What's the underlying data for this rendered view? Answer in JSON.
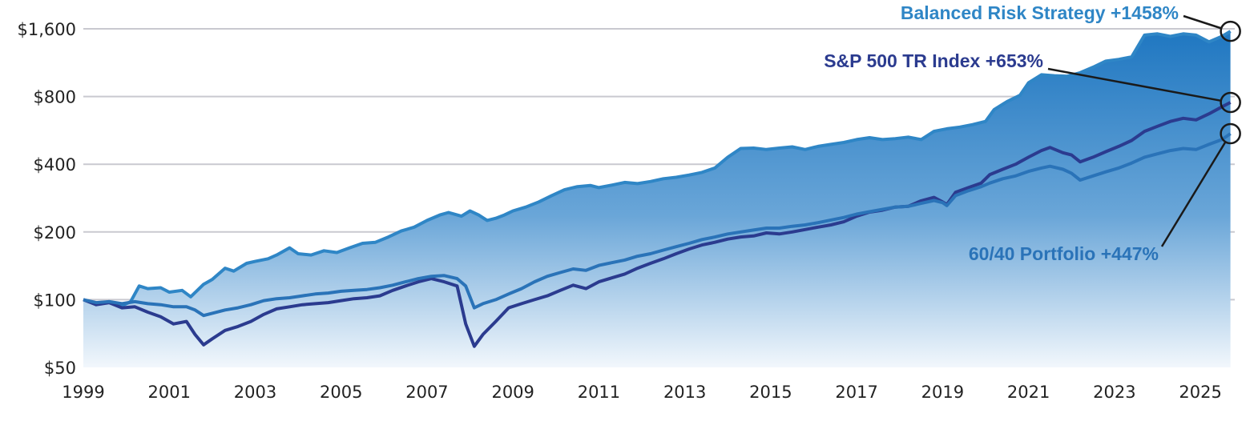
{
  "chart_data": {
    "type": "line",
    "y_scale": "log",
    "ylim": [
      50,
      1800
    ],
    "xlim": [
      1999,
      2025.8
    ],
    "y_ticks": [
      {
        "value": 1600,
        "label": "$1,600"
      },
      {
        "value": 800,
        "label": "$800"
      },
      {
        "value": 400,
        "label": "$400"
      },
      {
        "value": 200,
        "label": "$200"
      },
      {
        "value": 100,
        "label": "$100"
      },
      {
        "value": 50,
        "label": "$50"
      }
    ],
    "x_ticks": [
      {
        "value": 1999,
        "label": "1999"
      },
      {
        "value": 2001,
        "label": "2001"
      },
      {
        "value": 2003,
        "label": "2003"
      },
      {
        "value": 2005,
        "label": "2005"
      },
      {
        "value": 2007,
        "label": "2007"
      },
      {
        "value": 2009,
        "label": "2009"
      },
      {
        "value": 2011,
        "label": "2011"
      },
      {
        "value": 2013,
        "label": "2013"
      },
      {
        "value": 2015,
        "label": "2015"
      },
      {
        "value": 2017,
        "label": "2017"
      },
      {
        "value": 2019,
        "label": "2019"
      },
      {
        "value": 2021,
        "label": "2021"
      },
      {
        "value": 2023,
        "label": "2023"
      },
      {
        "value": 2025,
        "label": "2025"
      }
    ],
    "grid": true,
    "series": [
      {
        "name": "Balanced Risk Strategy +1458%",
        "style": "area",
        "color": "#2f86c6",
        "points": [
          [
            1999.0,
            100
          ],
          [
            1999.3,
            96
          ],
          [
            1999.6,
            98
          ],
          [
            1999.9,
            94
          ],
          [
            2000.1,
            98
          ],
          [
            2000.3,
            115
          ],
          [
            2000.5,
            112
          ],
          [
            2000.8,
            113
          ],
          [
            2001.0,
            108
          ],
          [
            2001.3,
            110
          ],
          [
            2001.5,
            103
          ],
          [
            2001.8,
            117
          ],
          [
            2002.0,
            123
          ],
          [
            2002.3,
            138
          ],
          [
            2002.5,
            134
          ],
          [
            2002.8,
            145
          ],
          [
            2003.0,
            148
          ],
          [
            2003.3,
            152
          ],
          [
            2003.5,
            158
          ],
          [
            2003.8,
            170
          ],
          [
            2004.0,
            160
          ],
          [
            2004.3,
            158
          ],
          [
            2004.6,
            165
          ],
          [
            2004.9,
            162
          ],
          [
            2005.2,
            170
          ],
          [
            2005.5,
            178
          ],
          [
            2005.8,
            180
          ],
          [
            2006.1,
            190
          ],
          [
            2006.4,
            202
          ],
          [
            2006.7,
            210
          ],
          [
            2007.0,
            225
          ],
          [
            2007.3,
            238
          ],
          [
            2007.5,
            244
          ],
          [
            2007.8,
            235
          ],
          [
            2008.0,
            248
          ],
          [
            2008.2,
            238
          ],
          [
            2008.4,
            225
          ],
          [
            2008.6,
            230
          ],
          [
            2008.8,
            238
          ],
          [
            2009.0,
            248
          ],
          [
            2009.3,
            258
          ],
          [
            2009.6,
            272
          ],
          [
            2009.9,
            290
          ],
          [
            2010.2,
            308
          ],
          [
            2010.5,
            318
          ],
          [
            2010.8,
            322
          ],
          [
            2011.0,
            315
          ],
          [
            2011.3,
            323
          ],
          [
            2011.6,
            332
          ],
          [
            2011.9,
            328
          ],
          [
            2012.2,
            335
          ],
          [
            2012.5,
            345
          ],
          [
            2012.8,
            350
          ],
          [
            2013.1,
            358
          ],
          [
            2013.4,
            368
          ],
          [
            2013.7,
            385
          ],
          [
            2014.0,
            430
          ],
          [
            2014.3,
            470
          ],
          [
            2014.6,
            472
          ],
          [
            2014.9,
            465
          ],
          [
            2015.2,
            472
          ],
          [
            2015.5,
            478
          ],
          [
            2015.8,
            465
          ],
          [
            2016.1,
            480
          ],
          [
            2016.4,
            490
          ],
          [
            2016.7,
            500
          ],
          [
            2017.0,
            515
          ],
          [
            2017.3,
            525
          ],
          [
            2017.6,
            515
          ],
          [
            2017.9,
            520
          ],
          [
            2018.2,
            528
          ],
          [
            2018.5,
            515
          ],
          [
            2018.8,
            560
          ],
          [
            2019.1,
            575
          ],
          [
            2019.4,
            585
          ],
          [
            2019.7,
            600
          ],
          [
            2020.0,
            620
          ],
          [
            2020.2,
            700
          ],
          [
            2020.5,
            760
          ],
          [
            2020.8,
            810
          ],
          [
            2021.0,
            920
          ],
          [
            2021.3,
            1000
          ],
          [
            2021.6,
            990
          ],
          [
            2021.9,
            985
          ],
          [
            2022.2,
            1020
          ],
          [
            2022.5,
            1080
          ],
          [
            2022.8,
            1150
          ],
          [
            2023.1,
            1170
          ],
          [
            2023.4,
            1200
          ],
          [
            2023.7,
            1500
          ],
          [
            2024.0,
            1520
          ],
          [
            2024.3,
            1480
          ],
          [
            2024.6,
            1520
          ],
          [
            2024.9,
            1500
          ],
          [
            2025.2,
            1400
          ],
          [
            2025.5,
            1480
          ],
          [
            2025.7,
            1560
          ]
        ]
      },
      {
        "name": "S&P 500 TR Index +653%",
        "style": "line",
        "color": "#2b3b8f",
        "points": [
          [
            1999.0,
            100
          ],
          [
            1999.3,
            95
          ],
          [
            1999.6,
            97
          ],
          [
            1999.9,
            92
          ],
          [
            2000.2,
            93
          ],
          [
            2000.5,
            88
          ],
          [
            2000.8,
            84
          ],
          [
            2001.1,
            78
          ],
          [
            2001.4,
            80
          ],
          [
            2001.6,
            70
          ],
          [
            2001.8,
            63
          ],
          [
            2002.0,
            67
          ],
          [
            2002.3,
            73
          ],
          [
            2002.6,
            76
          ],
          [
            2002.9,
            80
          ],
          [
            2003.2,
            86
          ],
          [
            2003.5,
            91
          ],
          [
            2003.8,
            93
          ],
          [
            2004.1,
            95
          ],
          [
            2004.4,
            96
          ],
          [
            2004.7,
            97
          ],
          [
            2005.0,
            99
          ],
          [
            2005.3,
            101
          ],
          [
            2005.6,
            102
          ],
          [
            2005.9,
            104
          ],
          [
            2006.2,
            110
          ],
          [
            2006.5,
            115
          ],
          [
            2006.8,
            120
          ],
          [
            2007.1,
            124
          ],
          [
            2007.4,
            120
          ],
          [
            2007.7,
            115
          ],
          [
            2007.9,
            78
          ],
          [
            2008.1,
            62
          ],
          [
            2008.3,
            70
          ],
          [
            2008.6,
            80
          ],
          [
            2008.9,
            92
          ],
          [
            2009.2,
            96
          ],
          [
            2009.5,
            100
          ],
          [
            2009.8,
            104
          ],
          [
            2010.1,
            110
          ],
          [
            2010.4,
            116
          ],
          [
            2010.7,
            112
          ],
          [
            2011.0,
            120
          ],
          [
            2011.3,
            125
          ],
          [
            2011.6,
            130
          ],
          [
            2011.9,
            138
          ],
          [
            2012.2,
            145
          ],
          [
            2012.5,
            152
          ],
          [
            2012.8,
            160
          ],
          [
            2013.1,
            168
          ],
          [
            2013.4,
            175
          ],
          [
            2013.7,
            180
          ],
          [
            2014.0,
            186
          ],
          [
            2014.3,
            190
          ],
          [
            2014.6,
            192
          ],
          [
            2014.9,
            198
          ],
          [
            2015.2,
            196
          ],
          [
            2015.5,
            200
          ],
          [
            2015.8,
            205
          ],
          [
            2016.1,
            210
          ],
          [
            2016.4,
            215
          ],
          [
            2016.7,
            222
          ],
          [
            2017.0,
            235
          ],
          [
            2017.3,
            245
          ],
          [
            2017.6,
            250
          ],
          [
            2017.9,
            258
          ],
          [
            2018.2,
            260
          ],
          [
            2018.5,
            275
          ],
          [
            2018.8,
            285
          ],
          [
            2019.0,
            272
          ],
          [
            2019.1,
            265
          ],
          [
            2019.3,
            300
          ],
          [
            2019.6,
            315
          ],
          [
            2019.9,
            330
          ],
          [
            2020.1,
            360
          ],
          [
            2020.4,
            380
          ],
          [
            2020.7,
            400
          ],
          [
            2021.0,
            430
          ],
          [
            2021.3,
            460
          ],
          [
            2021.5,
            475
          ],
          [
            2021.8,
            450
          ],
          [
            2022.0,
            440
          ],
          [
            2022.2,
            410
          ],
          [
            2022.5,
            430
          ],
          [
            2022.8,
            455
          ],
          [
            2023.1,
            480
          ],
          [
            2023.4,
            510
          ],
          [
            2023.7,
            560
          ],
          [
            2024.0,
            590
          ],
          [
            2024.3,
            620
          ],
          [
            2024.6,
            640
          ],
          [
            2024.9,
            630
          ],
          [
            2025.2,
            670
          ],
          [
            2025.5,
            720
          ],
          [
            2025.7,
            753
          ]
        ]
      },
      {
        "name": "60/40 Portfolio +447%",
        "style": "line",
        "color": "#2a73b8",
        "points": [
          [
            1999.0,
            100
          ],
          [
            1999.3,
            97
          ],
          [
            1999.6,
            98
          ],
          [
            1999.9,
            96
          ],
          [
            2000.2,
            98
          ],
          [
            2000.5,
            96
          ],
          [
            2000.8,
            95
          ],
          [
            2001.1,
            93
          ],
          [
            2001.4,
            93
          ],
          [
            2001.6,
            90
          ],
          [
            2001.8,
            85
          ],
          [
            2002.0,
            87
          ],
          [
            2002.3,
            90
          ],
          [
            2002.6,
            92
          ],
          [
            2002.9,
            95
          ],
          [
            2003.2,
            99
          ],
          [
            2003.5,
            101
          ],
          [
            2003.8,
            102
          ],
          [
            2004.1,
            104
          ],
          [
            2004.4,
            106
          ],
          [
            2004.7,
            107
          ],
          [
            2005.0,
            109
          ],
          [
            2005.3,
            110
          ],
          [
            2005.6,
            111
          ],
          [
            2005.9,
            113
          ],
          [
            2006.2,
            116
          ],
          [
            2006.5,
            120
          ],
          [
            2006.8,
            124
          ],
          [
            2007.1,
            127
          ],
          [
            2007.4,
            128
          ],
          [
            2007.7,
            124
          ],
          [
            2007.9,
            115
          ],
          [
            2008.1,
            92
          ],
          [
            2008.3,
            96
          ],
          [
            2008.6,
            100
          ],
          [
            2008.9,
            106
          ],
          [
            2009.2,
            112
          ],
          [
            2009.5,
            120
          ],
          [
            2009.8,
            127
          ],
          [
            2010.1,
            132
          ],
          [
            2010.4,
            137
          ],
          [
            2010.7,
            135
          ],
          [
            2011.0,
            142
          ],
          [
            2011.3,
            146
          ],
          [
            2011.6,
            150
          ],
          [
            2011.9,
            156
          ],
          [
            2012.2,
            160
          ],
          [
            2012.5,
            166
          ],
          [
            2012.8,
            172
          ],
          [
            2013.1,
            178
          ],
          [
            2013.4,
            185
          ],
          [
            2013.7,
            190
          ],
          [
            2014.0,
            196
          ],
          [
            2014.3,
            200
          ],
          [
            2014.6,
            204
          ],
          [
            2014.9,
            208
          ],
          [
            2015.2,
            208
          ],
          [
            2015.5,
            212
          ],
          [
            2015.8,
            215
          ],
          [
            2016.1,
            220
          ],
          [
            2016.4,
            226
          ],
          [
            2016.7,
            232
          ],
          [
            2017.0,
            240
          ],
          [
            2017.3,
            246
          ],
          [
            2017.6,
            252
          ],
          [
            2017.9,
            258
          ],
          [
            2018.2,
            260
          ],
          [
            2018.5,
            268
          ],
          [
            2018.8,
            276
          ],
          [
            2019.0,
            270
          ],
          [
            2019.1,
            262
          ],
          [
            2019.3,
            290
          ],
          [
            2019.6,
            305
          ],
          [
            2019.9,
            318
          ],
          [
            2020.1,
            330
          ],
          [
            2020.4,
            345
          ],
          [
            2020.7,
            355
          ],
          [
            2021.0,
            372
          ],
          [
            2021.3,
            385
          ],
          [
            2021.5,
            392
          ],
          [
            2021.8,
            380
          ],
          [
            2022.0,
            365
          ],
          [
            2022.2,
            340
          ],
          [
            2022.5,
            355
          ],
          [
            2022.8,
            370
          ],
          [
            2023.1,
            385
          ],
          [
            2023.4,
            405
          ],
          [
            2023.7,
            430
          ],
          [
            2024.0,
            445
          ],
          [
            2024.3,
            460
          ],
          [
            2024.6,
            470
          ],
          [
            2024.9,
            465
          ],
          [
            2025.2,
            490
          ],
          [
            2025.5,
            515
          ],
          [
            2025.7,
            547
          ]
        ]
      }
    ]
  }
}
